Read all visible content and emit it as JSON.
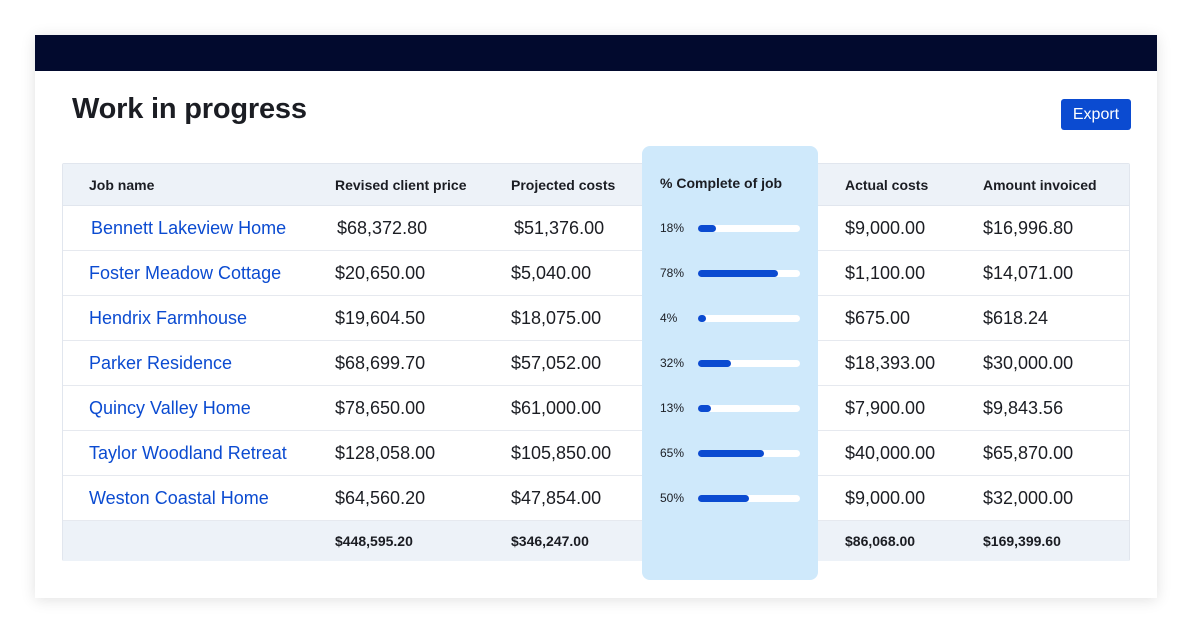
{
  "page_title": "Work in progress",
  "export_label": "Export",
  "columns": {
    "job_name": "Job name",
    "revised_client_price": "Revised client price",
    "projected_costs": "Projected costs",
    "percent_complete": "% Complete of job",
    "actual_costs": "Actual costs",
    "amount_invoiced": "Amount invoiced"
  },
  "rows": [
    {
      "name": "Bennett Lakeview Home",
      "revised": "$68,372.80",
      "projected": "$51,376.00",
      "pct_label": "18%",
      "pct": 0.18,
      "actual": "$9,000.00",
      "invoiced": "$16,996.80"
    },
    {
      "name": "Foster Meadow Cottage",
      "revised": "$20,650.00",
      "projected": "$5,040.00",
      "pct_label": "78%",
      "pct": 0.78,
      "actual": "$1,100.00",
      "invoiced": "$14,071.00"
    },
    {
      "name": "Hendrix Farmhouse",
      "revised": "$19,604.50",
      "projected": "$18,075.00",
      "pct_label": "4%",
      "pct": 0.04,
      "actual": "$675.00",
      "invoiced": "$618.24"
    },
    {
      "name": "Parker Residence",
      "revised": "$68,699.70",
      "projected": "$57,052.00",
      "pct_label": "32%",
      "pct": 0.32,
      "actual": "$18,393.00",
      "invoiced": "$30,000.00"
    },
    {
      "name": "Quincy Valley Home",
      "revised": "$78,650.00",
      "projected": "$61,000.00",
      "pct_label": "13%",
      "pct": 0.13,
      "actual": "$7,900.00",
      "invoiced": "$9,843.56"
    },
    {
      "name": "Taylor Woodland Retreat",
      "revised": "$128,058.00",
      "projected": "$105,850.00",
      "pct_label": "65%",
      "pct": 0.65,
      "actual": "$40,000.00",
      "invoiced": "$65,870.00"
    },
    {
      "name": "Weston Coastal Home",
      "revised": "$64,560.20",
      "projected": "$47,854.00",
      "pct_label": "50%",
      "pct": 0.5,
      "actual": "$9,000.00",
      "invoiced": "$32,000.00"
    }
  ],
  "totals": {
    "revised": "$448,595.20",
    "projected": "$346,247.00",
    "actual": "$86,068.00",
    "invoiced": "$169,399.60"
  },
  "colors": {
    "top_bar": "#020a2e",
    "accent": "#0b4bd1",
    "highlight_column": "#cfe9fb",
    "header_bg": "#edf2f8"
  }
}
